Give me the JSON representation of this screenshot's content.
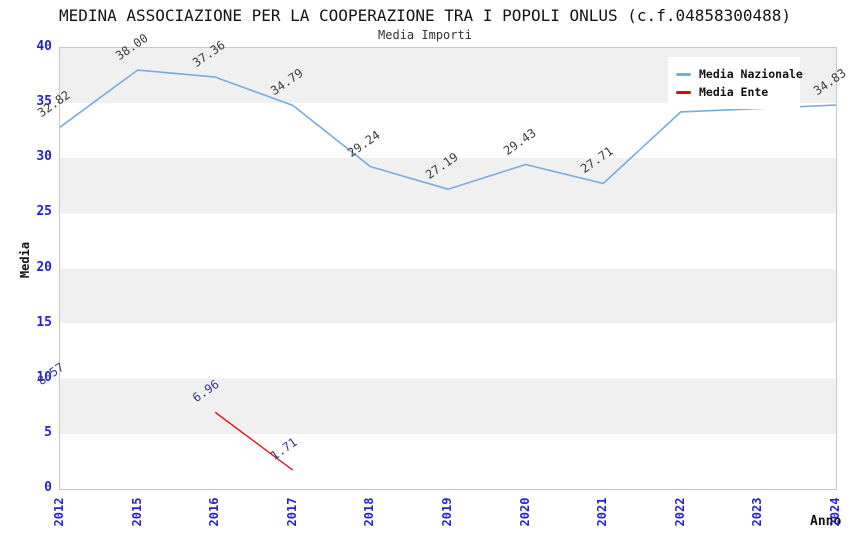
{
  "title": "MEDINA ASSOCIAZIONE PER LA COOPERAZIONE TRA I POPOLI ONLUS (c.f.04858300488)",
  "subtitle": "Media Importi",
  "axes": {
    "x_title": "Anno",
    "y_title": "Media",
    "y_ticks": [
      0,
      5,
      10,
      15,
      20,
      25,
      30,
      35,
      40
    ],
    "x_ticks": [
      "2012",
      "2015",
      "2016",
      "2017",
      "2018",
      "2019",
      "2020",
      "2021",
      "2022",
      "2023",
      "2024"
    ]
  },
  "legend": {
    "items": [
      {
        "label": "Media Nazionale",
        "color": "#76ace0"
      },
      {
        "label": "Media Ente",
        "color": "#ee0000"
      }
    ]
  },
  "colors": {
    "band_gray": "#f0f0f0",
    "plot_border": "#c9c9c9",
    "tick_label_blue": "#2424cf",
    "national_label_color": "#3d3d3d",
    "ente_label_color": "#383893"
  },
  "chart_data": {
    "type": "line",
    "title": "MEDINA ASSOCIAZIONE PER LA COOPERAZIONE TRA I POPOLI ONLUS (c.f.04858300488)",
    "subtitle": "Media Importi",
    "xlabel": "Anno",
    "ylabel": "Media",
    "ylim": [
      0,
      40
    ],
    "grid": "alternating horizontal gray/white bands every 5 units",
    "legend_position": "top-right inside plot",
    "categories": [
      "2012",
      "2015",
      "2016",
      "2017",
      "2018",
      "2019",
      "2020",
      "2021",
      "2022",
      "2023",
      "2024"
    ],
    "series": [
      {
        "name": "Media Nazionale",
        "color": "#76ace0",
        "stroke_width": 1.6,
        "points": [
          {
            "x": "2012",
            "y": 32.82,
            "label": "32.82"
          },
          {
            "x": "2015",
            "y": 38.0,
            "label": "38.00"
          },
          {
            "x": "2016",
            "y": 37.36,
            "label": "37.36"
          },
          {
            "x": "2017",
            "y": 34.79,
            "label": "34.79"
          },
          {
            "x": "2018",
            "y": 29.24,
            "label": "29.24"
          },
          {
            "x": "2019",
            "y": 27.19,
            "label": "27.19"
          },
          {
            "x": "2020",
            "y": 29.43,
            "label": "29.43"
          },
          {
            "x": "2021",
            "y": 27.71,
            "label": "27.71"
          },
          {
            "x": "2022",
            "y": 34.2,
            "label": "",
            "note": "value estimated, label hidden behind legend"
          },
          {
            "x": "2023",
            "y": 34.5,
            "label": "",
            "note": "value estimated, label hidden behind legend"
          },
          {
            "x": "2024",
            "y": 34.83,
            "label": "34.83"
          }
        ]
      },
      {
        "name": "Media Ente",
        "color": "#ee0000",
        "stroke_width": 1.3,
        "points": [
          {
            "x": "2012",
            "y": 8.57,
            "label": "8.57",
            "note": "isolated point, no connecting line"
          },
          {
            "x": "2016",
            "y": 6.96,
            "label": "6.96"
          },
          {
            "x": "2017",
            "y": 1.71,
            "label": "1.71"
          }
        ]
      }
    ]
  }
}
